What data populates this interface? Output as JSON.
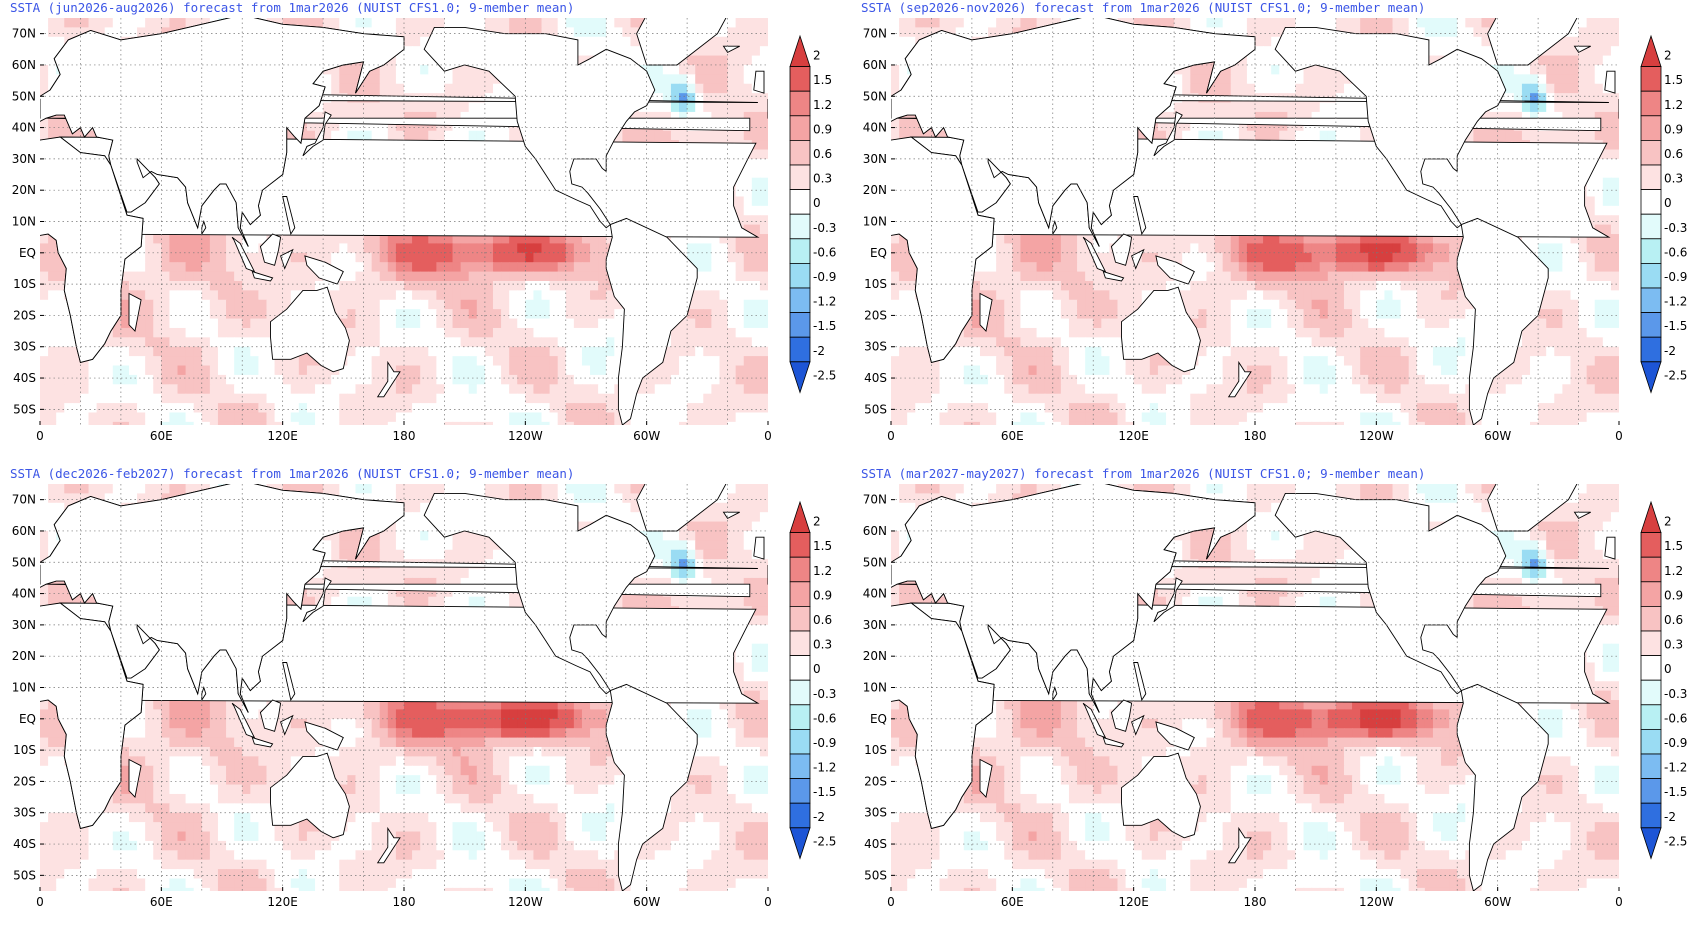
{
  "figure": {
    "panels": [
      {
        "title": "SSTA (jun2026-aug2026) forecast from 1mar2026 (NUIST CFS1.0; 9-member mean)",
        "season": "jun"
      },
      {
        "title": "SSTA (sep2026-nov2026) forecast from 1mar2026 (NUIST CFS1.0; 9-member mean)",
        "season": "sep"
      },
      {
        "title": "SSTA (dec2026-feb2027) forecast from 1mar2026 (NUIST CFS1.0; 9-member mean)",
        "season": "dec"
      },
      {
        "title": "SSTA (mar2027-may2027) forecast from 1mar2026 (NUIST CFS1.0; 9-member mean)",
        "season": "mar"
      }
    ],
    "lat_labels": [
      "70N",
      "60N",
      "50N",
      "40N",
      "30N",
      "20N",
      "10N",
      "EQ",
      "10S",
      "20S",
      "30S",
      "40S",
      "50S"
    ],
    "lon_labels": [
      "0",
      "60E",
      "120E",
      "180",
      "120W",
      "60W",
      "0"
    ],
    "colorbar": {
      "labels": [
        "2",
        "1.5",
        "1.2",
        "0.9",
        "0.6",
        "0.3",
        "0",
        "-0.3",
        "-0.6",
        "-0.9",
        "-1.2",
        "-1.5",
        "-2",
        "-2.5"
      ],
      "colors": [
        "#d73f3f",
        "#e45e5e",
        "#ee8585",
        "#f4a4a4",
        "#f8c3c3",
        "#fde2e2",
        "#ffffff",
        "#e2fbfb",
        "#b8f0f3",
        "#9adcf3",
        "#7cbcf2",
        "#5b98ea",
        "#2f6fe0",
        "#1d55d6"
      ]
    }
  }
}
